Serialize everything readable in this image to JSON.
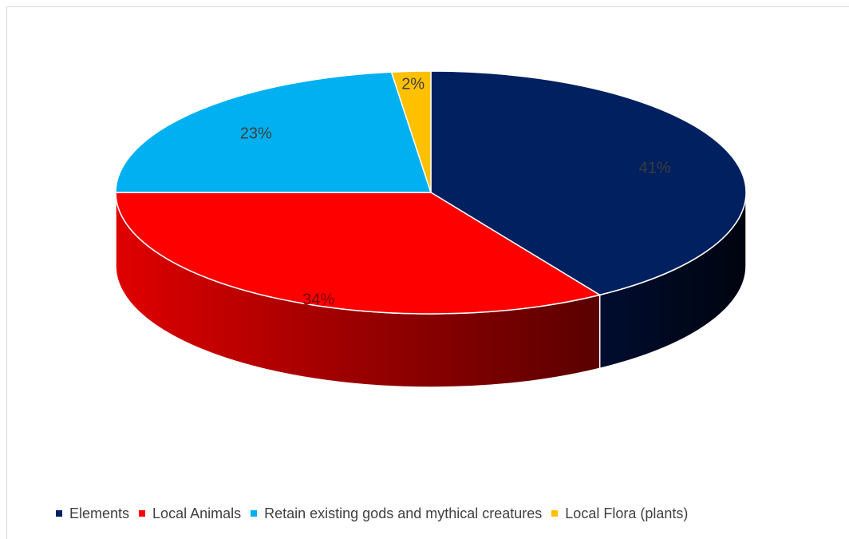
{
  "chart_data": {
    "type": "pie",
    "style": "3d",
    "title": "",
    "legend_position": "bottom",
    "slices": [
      {
        "name": "Elements",
        "value": 41,
        "label": "41%",
        "color": "#002060",
        "side_color": "#000c2a",
        "label_color": "#3b3b3b"
      },
      {
        "name": "Local Animals",
        "value": 34,
        "label": "34%",
        "color": "#ff0000",
        "side_color": "#b00000",
        "label_color": "#7a0000"
      },
      {
        "name": "Retain existing gods and mythical creatures",
        "value": 23,
        "label": "23%",
        "color": "#00b0f0",
        "side_color": "#0080b0",
        "label_color": "#404040"
      },
      {
        "name": "Local Flora  (plants)",
        "value": 2,
        "label": "2%",
        "color": "#ffc000",
        "side_color": "#c09000",
        "label_color": "#404040"
      }
    ]
  }
}
